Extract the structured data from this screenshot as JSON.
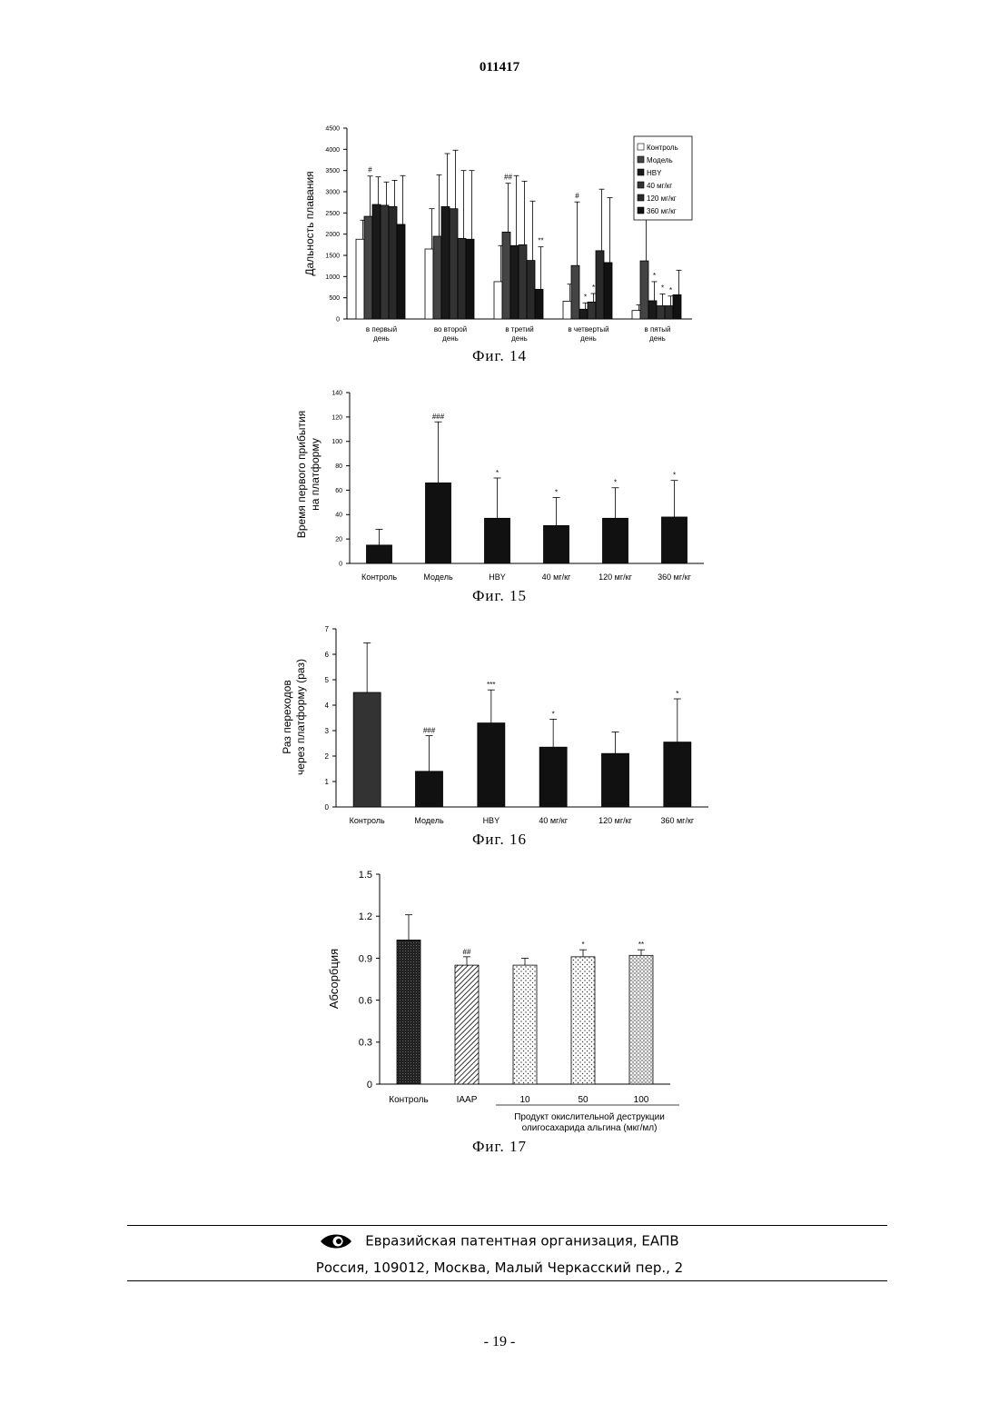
{
  "document_number": "011417",
  "page_number": "- 19 -",
  "footer": {
    "org": "Евразийская патентная организация, ЕАПВ",
    "address": "Россия, 109012, Москва, Малый Черкасский пер., 2"
  },
  "chart_data": [
    {
      "type": "bar",
      "caption": "Фиг. 14",
      "ylabel": "Дальность плавания",
      "ylim": [
        0,
        4500
      ],
      "yticks": [
        0,
        500,
        1000,
        1500,
        2000,
        2500,
        3000,
        3500,
        4000,
        4500
      ],
      "categories": [
        "в первый день",
        "во второй день",
        "в третий день",
        "в четвертый день",
        "в пятый день"
      ],
      "category_lines": [
        [
          "в первый",
          "день"
        ],
        [
          "во второй",
          "день"
        ],
        [
          "в третий",
          "день"
        ],
        [
          "в четвертый",
          "день"
        ],
        [
          "в пятый",
          "день"
        ]
      ],
      "legend_position": "top-right",
      "series": [
        {
          "name": "Контроль",
          "values": [
            1880,
            1650,
            880,
            420,
            200
          ],
          "errors": [
            450,
            950,
            850,
            400,
            130
          ],
          "fill": "#ffffff"
        },
        {
          "name": "Модель",
          "values": [
            2420,
            1950,
            2050,
            1260,
            1370
          ],
          "errors": [
            950,
            1450,
            1150,
            1500,
            1750
          ],
          "fill": "#444444"
        },
        {
          "name": "HBY",
          "values": [
            2700,
            2650,
            1730,
            230,
            430
          ],
          "errors": [
            650,
            1250,
            1650,
            150,
            450
          ],
          "fill": "#1a1a1a"
        },
        {
          "name": "40 мг/кг",
          "values": [
            2680,
            2600,
            1750,
            400,
            310
          ],
          "errors": [
            550,
            1380,
            1500,
            200,
            280
          ],
          "fill": "#333333"
        },
        {
          "name": "120 мг/кг",
          "values": [
            2650,
            1900,
            1380,
            1610,
            310
          ],
          "errors": [
            620,
            1600,
            1400,
            1450,
            230
          ],
          "fill": "#2a2a2a"
        },
        {
          "name": "360 мг/кг",
          "values": [
            2230,
            1880,
            700,
            1330,
            570
          ],
          "errors": [
            1150,
            1620,
            1000,
            1530,
            580
          ],
          "fill": "#111111"
        }
      ],
      "annotations": [
        {
          "category": 0,
          "series": 1,
          "text": "#"
        },
        {
          "category": 2,
          "series": 1,
          "text": "##"
        },
        {
          "category": 2,
          "series": 5,
          "text": "**"
        },
        {
          "category": 3,
          "series": 1,
          "text": "#"
        },
        {
          "category": 3,
          "series": 2,
          "text": "*"
        },
        {
          "category": 3,
          "series": 3,
          "text": "*"
        },
        {
          "category": 4,
          "series": 1,
          "text": "#"
        },
        {
          "category": 4,
          "series": 2,
          "text": "*"
        },
        {
          "category": 4,
          "series": 3,
          "text": "*"
        },
        {
          "category": 4,
          "series": 4,
          "text": "*"
        }
      ]
    },
    {
      "type": "bar",
      "caption": "Фиг. 15",
      "ylabel_lines": [
        "Время первого прибытия",
        "на платформу"
      ],
      "ylim": [
        0,
        140
      ],
      "yticks": [
        0,
        20,
        40,
        60,
        80,
        100,
        120,
        140
      ],
      "categories": [
        "Контроль",
        "Модель",
        "HBY",
        "40 мг/кг",
        "120 мг/кг",
        "360 мг/кг"
      ],
      "values": [
        15,
        66,
        37,
        31,
        37,
        38
      ],
      "errors": [
        13,
        50,
        33,
        23,
        25,
        30
      ],
      "annotations": [
        "",
        "###",
        "*",
        "*",
        "*",
        "*"
      ]
    },
    {
      "type": "bar",
      "caption": "Фиг. 16",
      "ylabel_lines": [
        "Раз переходов",
        "через платформу (раз)"
      ],
      "ylim": [
        0,
        7
      ],
      "yticks": [
        0,
        1,
        2,
        3,
        4,
        5,
        6,
        7
      ],
      "categories": [
        "Контроль",
        "Модель",
        "HBY",
        "40 мг/кг",
        "120 мг/кг",
        "360 мг/кг"
      ],
      "values": [
        4.5,
        1.4,
        3.3,
        2.35,
        2.1,
        2.55
      ],
      "errors": [
        1.95,
        1.4,
        1.3,
        1.1,
        0.85,
        1.7
      ],
      "annotations": [
        "",
        "###",
        "***",
        "*",
        "",
        "*"
      ]
    },
    {
      "type": "bar",
      "caption": "Фиг. 17",
      "ylabel": "Абсорбция",
      "ylim": [
        0,
        1.5
      ],
      "yticks": [
        "0",
        "0.3",
        "0.6",
        "0.9",
        "1.2",
        "1.5"
      ],
      "categories": [
        "Контроль",
        "IAAP",
        "10",
        "50",
        "100"
      ],
      "values": [
        1.03,
        0.85,
        0.85,
        0.91,
        0.92
      ],
      "errors": [
        0.18,
        0.06,
        0.05,
        0.05,
        0.04
      ],
      "annotations": [
        "",
        "##",
        "",
        "*",
        "**"
      ],
      "group_label_lines": [
        "Продукт окислительной деструкции",
        "олигосахарида альгина (мкг/мл)"
      ]
    }
  ]
}
